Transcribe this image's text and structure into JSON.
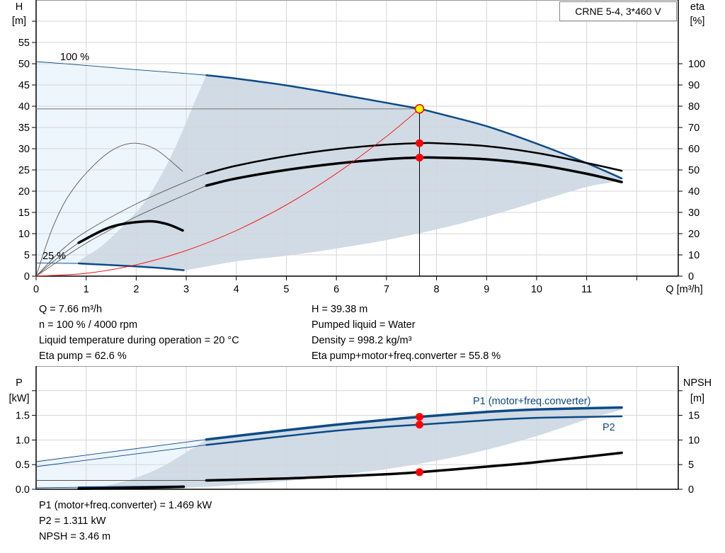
{
  "model_label": "CRNE 5-4, 3*460 V",
  "info_top": {
    "left": [
      "Q = 7.66 m³/h",
      "n = 100 % / 4000 rpm",
      "Liquid temperature during operation = 20 °C",
      "Eta pump = 62.6 %"
    ],
    "right": [
      "H = 39.38 m",
      "Pumped liquid = Water",
      "Density = 998.2 kg/m³",
      "Eta pump+motor+freq.converter = 55.8 %"
    ]
  },
  "info_bottom": [
    "P1 (motor+freq.converter) = 1.469 kW",
    "P2 = 1.311 kW",
    "NPSH = 3.46 m"
  ],
  "colors": {
    "blue": "#0c4a86",
    "black": "#000000",
    "red": "#ff0000",
    "operating_point": "#ffff00",
    "envelope": "#d0dbe6",
    "envelope_light": "#edf5fd",
    "grid": "#d6d6d6"
  },
  "chart_data": [
    {
      "type": "line",
      "title": "",
      "xlabel": "Q [m³/h]",
      "ylabel_left": [
        "H",
        "[m]"
      ],
      "ylabel_right": [
        "eta",
        "[%]"
      ],
      "xlim": [
        0,
        12.83
      ],
      "ylim_left": [
        0,
        65
      ],
      "ylim_right": [
        0,
        130
      ],
      "grid": true,
      "x_ticks": [
        "0",
        "1",
        "2",
        "3",
        "4",
        "5",
        "6",
        "7",
        "8",
        "9",
        "10",
        "11"
      ],
      "y_ticks_left": [
        "0",
        "5",
        "10",
        "15",
        "20",
        "25",
        "30",
        "35",
        "40",
        "45",
        "50",
        "55"
      ],
      "y_ticks_right": [
        "0",
        "10",
        "20",
        "30",
        "40",
        "50",
        "60",
        "70",
        "80",
        "90",
        "100"
      ],
      "curve_labels": [
        "100 %",
        "25 %"
      ],
      "series": [
        {
          "id": "head-100",
          "axis": "left",
          "color": "blue",
          "thin_until": 3.4,
          "points": [
            [
              0,
              50.5
            ],
            [
              1,
              49.6
            ],
            [
              2,
              48.6
            ],
            [
              3,
              47.7
            ],
            [
              3.4,
              47.3
            ],
            [
              4,
              46.5
            ],
            [
              5,
              44.9
            ],
            [
              6,
              42.9
            ],
            [
              7,
              40.8
            ],
            [
              7.66,
              39.38
            ],
            [
              8,
              38.4
            ],
            [
              9,
              35.3
            ],
            [
              10,
              31.2
            ],
            [
              11,
              26.6
            ],
            [
              11.7,
              23.0
            ]
          ]
        },
        {
          "id": "head-25",
          "axis": "left",
          "color": "blue",
          "thin_until": 0.85,
          "points": [
            [
              0,
              3.1
            ],
            [
              0.85,
              3.0
            ],
            [
              1.5,
              2.6
            ],
            [
              2,
              2.3
            ],
            [
              2.5,
              1.9
            ],
            [
              2.95,
              1.4
            ]
          ]
        },
        {
          "id": "eta-pump-100",
          "axis": "right",
          "color": "black",
          "thin_until": 3.4,
          "points": [
            [
              0,
              0
            ],
            [
              0.5,
              12
            ],
            [
              1,
              21
            ],
            [
              2,
              34
            ],
            [
              3,
              44.5
            ],
            [
              3.4,
              48.3
            ],
            [
              4,
              52
            ],
            [
              5,
              56.5
            ],
            [
              6,
              59.8
            ],
            [
              7,
              61.9
            ],
            [
              7.66,
              62.6
            ],
            [
              8,
              62.6
            ],
            [
              9,
              61.2
            ],
            [
              10,
              58
            ],
            [
              11,
              53.3
            ],
            [
              11.7,
              49.6
            ]
          ]
        },
        {
          "id": "eta-total-100",
          "axis": "right",
          "color": "black",
          "thin_until": 3.4,
          "thick": true,
          "points": [
            [
              0,
              0
            ],
            [
              1,
              15.5
            ],
            [
              2,
              28
            ],
            [
              3,
              38.5
            ],
            [
              3.4,
              42.6
            ],
            [
              4,
              46
            ],
            [
              5,
              50
            ],
            [
              6,
              53
            ],
            [
              7,
              55.1
            ],
            [
              7.66,
              55.8
            ],
            [
              8,
              55.8
            ],
            [
              9,
              55
            ],
            [
              10,
              52.5
            ],
            [
              11,
              48.2
            ],
            [
              11.7,
              44.3
            ]
          ]
        },
        {
          "id": "eta-pump-25",
          "axis": "right",
          "color": "black",
          "thin_until": 99,
          "points": [
            [
              0,
              0
            ],
            [
              0.3,
              21
            ],
            [
              0.6,
              36
            ],
            [
              1,
              48.5
            ],
            [
              1.5,
              59
            ],
            [
              1.95,
              62.6
            ],
            [
              2.4,
              59.5
            ],
            [
              2.93,
              49.3
            ]
          ]
        },
        {
          "id": "eta-total-25",
          "axis": "right",
          "color": "black",
          "thin_until": 0.85,
          "thick": true,
          "points": [
            [
              0,
              0
            ],
            [
              0.4,
              8
            ],
            [
              0.85,
              15.7
            ],
            [
              1.5,
              23.2
            ],
            [
              2.2,
              25.8
            ],
            [
              2.6,
              24.6
            ],
            [
              2.93,
              21.5
            ]
          ]
        },
        {
          "id": "system-curve",
          "axis": "left",
          "color": "red",
          "thin_until": 99,
          "points": [
            [
              0,
              0
            ],
            [
              1,
              0.67
            ],
            [
              2,
              2.68
            ],
            [
              3,
              6.04
            ],
            [
              4,
              10.74
            ],
            [
              5,
              16.78
            ],
            [
              6,
              24.16
            ],
            [
              7,
              32.89
            ],
            [
              7.66,
              39.38
            ]
          ]
        }
      ],
      "envelope": [
        [
          3.4,
          47.3
        ],
        [
          4,
          46.5
        ],
        [
          5,
          44.9
        ],
        [
          6,
          42.9
        ],
        [
          7,
          40.8
        ],
        [
          8,
          38.4
        ],
        [
          9,
          35.3
        ],
        [
          10,
          31.2
        ],
        [
          11,
          26.6
        ],
        [
          11.7,
          23.0
        ],
        [
          11,
          21
        ],
        [
          10,
          17.5
        ],
        [
          9,
          14
        ],
        [
          8,
          11
        ],
        [
          7,
          8.5
        ],
        [
          6,
          6.5
        ],
        [
          5,
          4.8
        ],
        [
          4,
          3.5
        ],
        [
          2.95,
          1.4
        ],
        [
          2.5,
          1.9
        ],
        [
          1.5,
          2.6
        ],
        [
          0.85,
          3.0
        ],
        [
          1.3,
          7
        ],
        [
          1.8,
          12.5
        ],
        [
          2.2,
          18
        ],
        [
          2.6,
          26
        ],
        [
          2.9,
          33.5
        ],
        [
          3.15,
          40.5
        ],
        [
          3.4,
          47.3
        ]
      ],
      "envelope_light": [
        [
          0,
          50.5
        ],
        [
          1,
          49.6
        ],
        [
          2,
          48.6
        ],
        [
          3,
          47.7
        ],
        [
          3.4,
          47.3
        ],
        [
          3.15,
          40.5
        ],
        [
          2.9,
          33.5
        ],
        [
          2.6,
          26
        ],
        [
          2.2,
          18
        ],
        [
          1.8,
          12.5
        ],
        [
          1.3,
          7
        ],
        [
          0.85,
          3.0
        ],
        [
          0,
          3.1
        ]
      ],
      "operating_point": {
        "Q": 7.66,
        "H": 39.38,
        "eta_pump": 62.6,
        "eta_total": 55.8
      }
    },
    {
      "type": "line",
      "title": "",
      "ylabel_left": [
        "P",
        "[kW]"
      ],
      "ylabel_right": [
        "NPSH",
        "[m]"
      ],
      "xlim": [
        0,
        12.83
      ],
      "ylim_left": [
        0,
        2.5
      ],
      "ylim_right": [
        0,
        25
      ],
      "grid": true,
      "y_ticks_left": [
        "0.0",
        "0.5",
        "1.0",
        "1.5"
      ],
      "y_ticks_right": [
        "0",
        "5",
        "10",
        "15"
      ],
      "series_labels": [
        "P1 (motor+freq.converter)",
        "P2"
      ],
      "series": [
        {
          "id": "p1-100",
          "name": "P1 (motor+freq.converter)",
          "axis": "left",
          "color": "blue",
          "thin_until": 3.4,
          "thick": true,
          "points": [
            [
              0,
              0.56
            ],
            [
              3.4,
              1.01
            ],
            [
              5,
              1.2
            ],
            [
              6,
              1.31
            ],
            [
              7,
              1.41
            ],
            [
              7.66,
              1.469
            ],
            [
              9,
              1.57
            ],
            [
              10,
              1.62
            ],
            [
              11.7,
              1.66
            ]
          ]
        },
        {
          "id": "p2-100",
          "name": "P2",
          "axis": "left",
          "color": "blue",
          "thin_until": 3.4,
          "points": [
            [
              0,
              0.46
            ],
            [
              3.4,
              0.9
            ],
            [
              5,
              1.08
            ],
            [
              6,
              1.19
            ],
            [
              7,
              1.27
            ],
            [
              7.66,
              1.311
            ],
            [
              9,
              1.4
            ],
            [
              10,
              1.45
            ],
            [
              11.7,
              1.48
            ]
          ]
        },
        {
          "id": "npsh-100",
          "axis": "right",
          "color": "black",
          "thin_until": 3.4,
          "thick": true,
          "points": [
            [
              0,
              1.8
            ],
            [
              3.4,
              1.8
            ],
            [
              5,
              2.2
            ],
            [
              6,
              2.6
            ],
            [
              7,
              3.05
            ],
            [
              7.66,
              3.46
            ],
            [
              9,
              4.6
            ],
            [
              10,
              5.5
            ],
            [
              11.7,
              7.4
            ]
          ]
        },
        {
          "id": "p-25",
          "axis": "left",
          "color": "blue",
          "thin_until": 0.85,
          "points": [
            [
              0,
              0.03
            ],
            [
              0.85,
              0.04
            ],
            [
              2,
              0.05
            ],
            [
              2.95,
              0.06
            ]
          ]
        },
        {
          "id": "npsh-25",
          "axis": "right",
          "color": "black",
          "thin_until": 0.85,
          "thick": true,
          "points": [
            [
              0,
              0.1
            ],
            [
              0.85,
              0.1
            ],
            [
              2,
              0.3
            ],
            [
              2.95,
              0.5
            ]
          ]
        }
      ],
      "envelope": [
        [
          3.4,
          1.01
        ],
        [
          5,
          1.2
        ],
        [
          6,
          1.31
        ],
        [
          7,
          1.41
        ],
        [
          8,
          1.5
        ],
        [
          9,
          1.57
        ],
        [
          10,
          1.62
        ],
        [
          11.7,
          1.66
        ],
        [
          11,
          1.42
        ],
        [
          10,
          1.08
        ],
        [
          9,
          0.8
        ],
        [
          8,
          0.58
        ],
        [
          7,
          0.41
        ],
        [
          6,
          0.28
        ],
        [
          5,
          0.17
        ],
        [
          4,
          0.09
        ],
        [
          3,
          0.03
        ],
        [
          2,
          0.0
        ],
        [
          1.2,
          0
        ],
        [
          1.9,
          0.2
        ],
        [
          2.5,
          0.45
        ],
        [
          3,
          0.75
        ],
        [
          3.4,
          1.01
        ]
      ],
      "envelope_light": [
        [
          0,
          0.56
        ],
        [
          3.4,
          1.01
        ],
        [
          3,
          0.75
        ],
        [
          2.5,
          0.45
        ],
        [
          1.9,
          0.2
        ],
        [
          1.2,
          0
        ],
        [
          0,
          0
        ]
      ],
      "operating_point": {
        "Q": 7.66,
        "P1": 1.469,
        "P2": 1.311,
        "NPSH": 3.46
      }
    }
  ]
}
